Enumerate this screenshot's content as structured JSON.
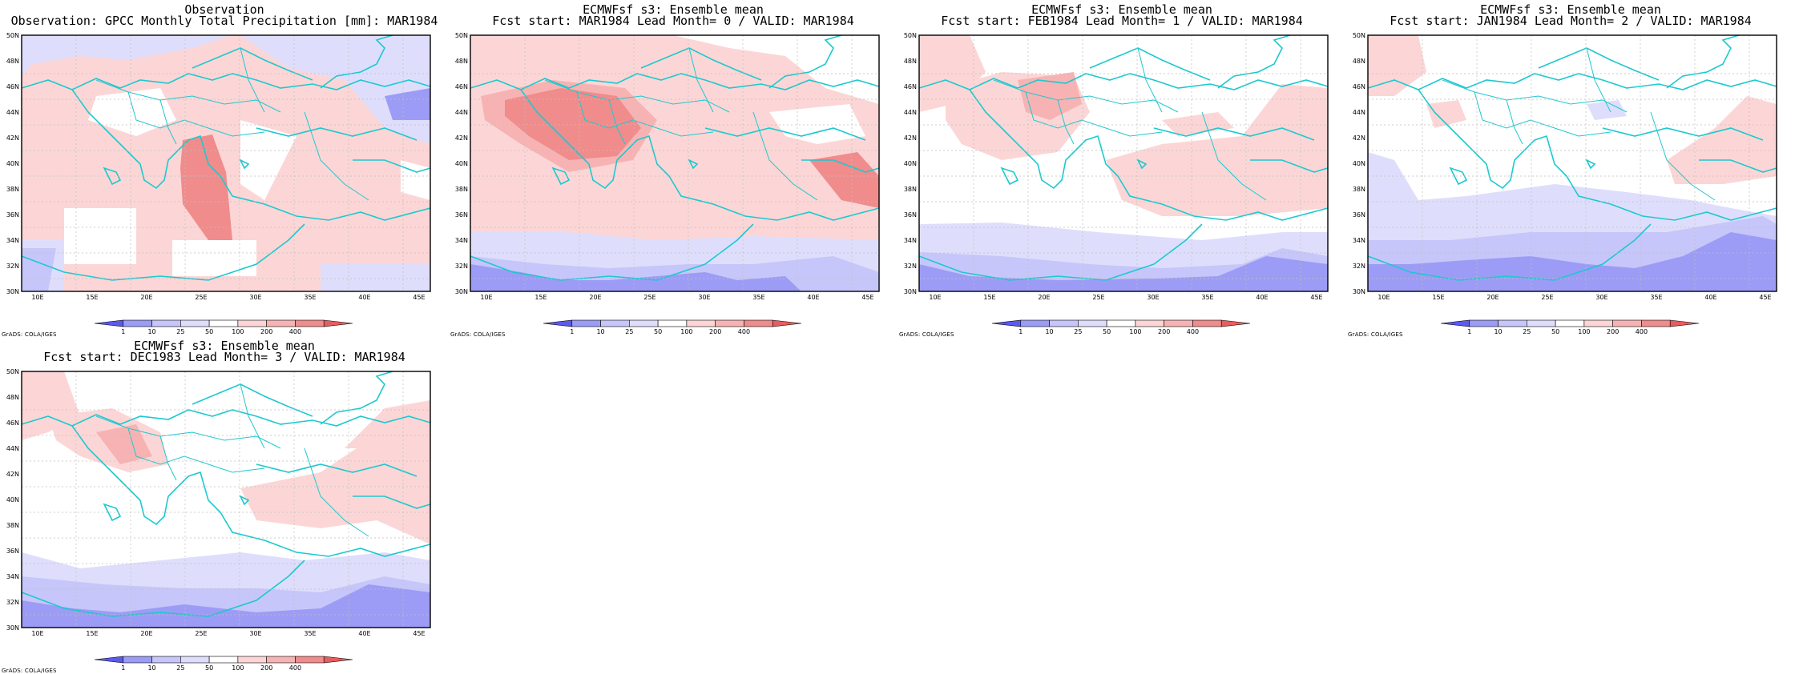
{
  "colors": {
    "coast": "#1cc9cf",
    "border": "#1cc9cf",
    "grid": "#bfbfbf",
    "blue_dark": "#9c9cf6",
    "blue_mid": "#c6c6fa",
    "blue_light": "#dedefc",
    "red_light": "#fcd6d6",
    "red_mid": "#f7b3b3",
    "red_dark": "#f08c8c",
    "red_strong": "#ea5c5c"
  },
  "map": {
    "lon_ticks": [
      "10E",
      "15E",
      "20E",
      "25E",
      "30E",
      "35E",
      "40E",
      "45E"
    ],
    "lat_ticks": [
      "30N",
      "32N",
      "34N",
      "36N",
      "38N",
      "40N",
      "42N",
      "44N",
      "46N",
      "48N",
      "50N"
    ]
  },
  "colorbar": {
    "labels": [
      "1",
      "10",
      "25",
      "50",
      "100",
      "200",
      "400"
    ],
    "colors": [
      "#5a5af0",
      "#9c9cf6",
      "#c6c6fa",
      "#dedefc",
      "#ffffff",
      "#fcd6d6",
      "#f7b3b3",
      "#f08c8c",
      "#ea5c5c"
    ]
  },
  "grads_credit": "GrADS: COLA/IGES",
  "panels": [
    {
      "title1": "Observation",
      "title2": "Observation: GPCC Monthly Total Precipitation [mm]: MAR1984"
    },
    {
      "title1": "ECMWFsf s3: Ensemble mean",
      "title2": "Fcst start: MAR1984  Lead Month= 0 / VALID: MAR1984"
    },
    {
      "title1": "ECMWFsf s3: Ensemble mean",
      "title2": "Fcst start: FEB1984  Lead Month= 1 / VALID: MAR1984"
    },
    {
      "title1": "ECMWFsf s3: Ensemble mean",
      "title2": "Fcst start: JAN1984  Lead Month= 2 / VALID: MAR1984"
    },
    {
      "title1": "ECMWFsf s3: Ensemble mean",
      "title2": "Fcst start: DEC1983  Lead Month= 3 / VALID: MAR1984"
    }
  ]
}
